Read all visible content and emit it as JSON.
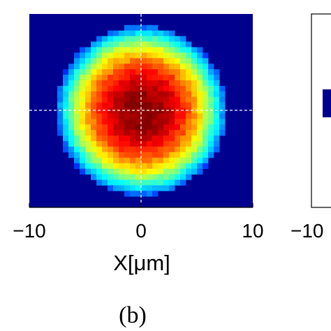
{
  "chart_data": {
    "type": "heatmap",
    "panel_label": "(b)",
    "xlabel": "X[μm]",
    "x_ticks": [
      "−10",
      "0",
      "10"
    ],
    "xlim": [
      -10,
      10
    ],
    "colormap": "jet",
    "crosshair": {
      "x": 0,
      "y": 0,
      "style": "dashed",
      "color": "#ffffff"
    },
    "spot": {
      "center_x": 0,
      "center_y": 0,
      "radius": 7.6,
      "peak_x": 0.4
    },
    "background_color": "#00008f",
    "neighbor_panel": {
      "tick_label": "−10"
    }
  }
}
